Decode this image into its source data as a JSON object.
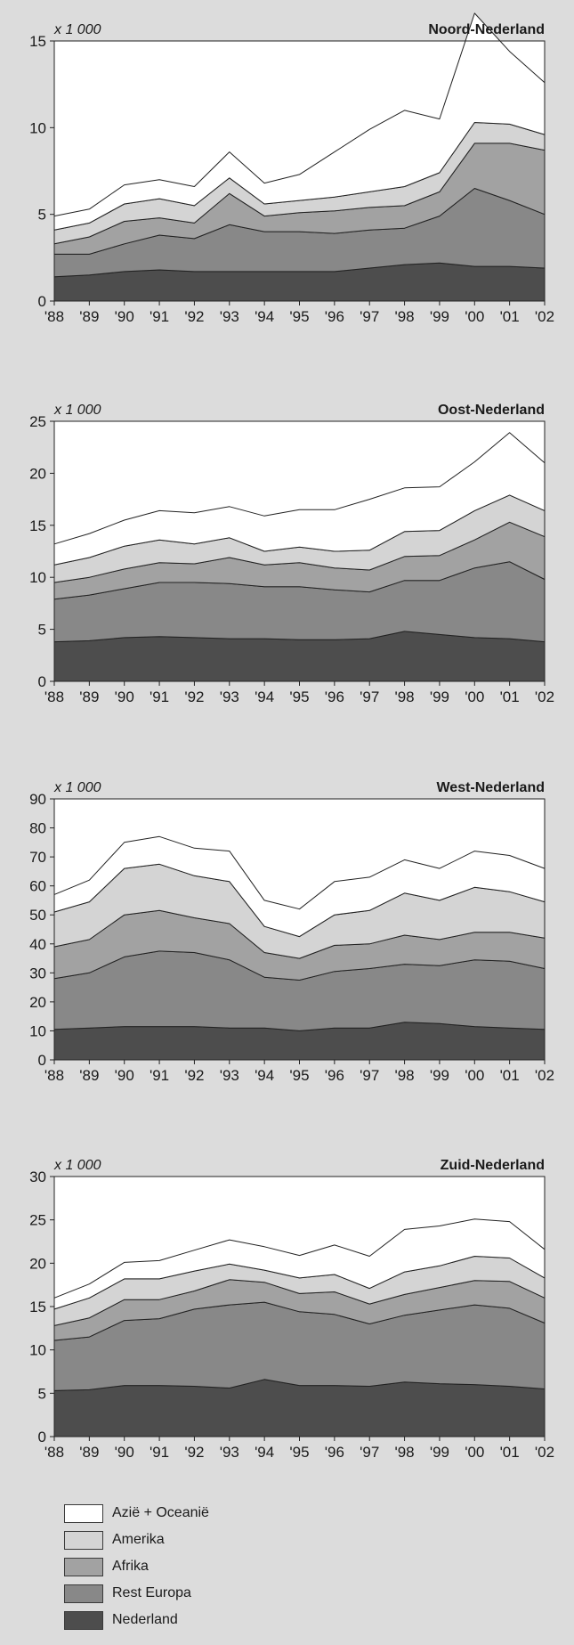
{
  "colors": {
    "background": "#dcdcdc",
    "plot_bg": "#ffffff",
    "text": "#1a1a1a",
    "series": [
      "#4d4d4d",
      "#888888",
      "#a2a2a2",
      "#d4d4d4",
      "#ffffff"
    ]
  },
  "chart_data": [
    {
      "type": "area",
      "stacked": true,
      "title": "Noord-Nederland",
      "unit_label": "x 1 000",
      "categories": [
        "'88",
        "'89",
        "'90",
        "'91",
        "'92",
        "'93",
        "'94",
        "'95",
        "'96",
        "'97",
        "'98",
        "'99",
        "'00",
        "'01",
        "'02"
      ],
      "ylim": [
        0,
        15
      ],
      "yticks": [
        0,
        5,
        10,
        15
      ],
      "series": [
        {
          "name": "Nederland",
          "values": [
            1.4,
            1.5,
            1.7,
            1.8,
            1.7,
            1.7,
            1.7,
            1.7,
            1.7,
            1.9,
            2.1,
            2.2,
            2.0,
            2.0,
            1.9
          ]
        },
        {
          "name": "Rest Europa",
          "values": [
            1.3,
            1.2,
            1.6,
            2.0,
            1.9,
            2.7,
            2.3,
            2.3,
            2.2,
            2.2,
            2.1,
            2.7,
            4.5,
            3.8,
            3.1
          ]
        },
        {
          "name": "Afrika",
          "values": [
            0.6,
            1.0,
            1.3,
            1.0,
            0.9,
            1.8,
            0.9,
            1.1,
            1.3,
            1.3,
            1.3,
            1.4,
            2.6,
            3.3,
            3.7
          ]
        },
        {
          "name": "Amerika",
          "values": [
            0.8,
            0.8,
            1.0,
            1.1,
            1.0,
            0.9,
            0.7,
            0.7,
            0.8,
            0.9,
            1.1,
            1.1,
            1.2,
            1.1,
            0.9
          ]
        },
        {
          "name": "Azië + Oceanië",
          "values": [
            0.8,
            0.8,
            1.1,
            1.1,
            1.1,
            1.5,
            1.2,
            1.5,
            2.6,
            3.6,
            4.4,
            3.1,
            6.3,
            4.2,
            3.0
          ]
        }
      ]
    },
    {
      "type": "area",
      "stacked": true,
      "title": "Oost-Nederland",
      "unit_label": "x 1 000",
      "categories": [
        "'88",
        "'89",
        "'90",
        "'91",
        "'92",
        "'93",
        "'94",
        "'95",
        "'96",
        "'97",
        "'98",
        "'99",
        "'00",
        "'01",
        "'02"
      ],
      "ylim": [
        0,
        25
      ],
      "yticks": [
        0,
        5,
        10,
        15,
        20,
        25
      ],
      "series": [
        {
          "name": "Nederland",
          "values": [
            3.8,
            3.9,
            4.2,
            4.3,
            4.2,
            4.1,
            4.1,
            4.0,
            4.0,
            4.1,
            4.8,
            4.5,
            4.2,
            4.1,
            3.8
          ]
        },
        {
          "name": "Rest Europa",
          "values": [
            4.1,
            4.4,
            4.7,
            5.2,
            5.3,
            5.3,
            5.0,
            5.1,
            4.8,
            4.5,
            4.9,
            5.2,
            6.7,
            7.4,
            6.0
          ]
        },
        {
          "name": "Afrika",
          "values": [
            1.6,
            1.7,
            1.9,
            1.9,
            1.8,
            2.5,
            2.1,
            2.3,
            2.1,
            2.1,
            2.3,
            2.4,
            2.7,
            3.8,
            4.1
          ]
        },
        {
          "name": "Amerika",
          "values": [
            1.7,
            1.9,
            2.2,
            2.2,
            1.9,
            1.9,
            1.3,
            1.5,
            1.6,
            1.9,
            2.4,
            2.4,
            2.8,
            2.6,
            2.5
          ]
        },
        {
          "name": "Azië + Oceanië",
          "values": [
            2.0,
            2.3,
            2.5,
            2.8,
            3.0,
            3.0,
            3.4,
            3.6,
            4.0,
            4.9,
            4.2,
            4.2,
            4.7,
            6.0,
            4.6
          ]
        }
      ]
    },
    {
      "type": "area",
      "stacked": true,
      "title": "West-Nederland",
      "unit_label": "x 1 000",
      "categories": [
        "'88",
        "'89",
        "'90",
        "'91",
        "'92",
        "'93",
        "'94",
        "'95",
        "'96",
        "'97",
        "'98",
        "'99",
        "'00",
        "'01",
        "'02"
      ],
      "ylim": [
        0,
        90
      ],
      "yticks": [
        0,
        10,
        20,
        30,
        40,
        50,
        60,
        70,
        80,
        90
      ],
      "series": [
        {
          "name": "Nederland",
          "values": [
            10.5,
            11,
            11.5,
            11.5,
            11.5,
            11,
            11,
            10,
            11,
            11,
            13,
            12.5,
            11.5,
            11,
            10.5
          ]
        },
        {
          "name": "Rest Europa",
          "values": [
            17.5,
            19,
            24,
            26,
            25.5,
            23.5,
            17.5,
            17.5,
            19.5,
            20.5,
            20,
            20,
            23,
            23,
            21
          ]
        },
        {
          "name": "Afrika",
          "values": [
            11,
            11.5,
            14.5,
            14,
            12,
            12.5,
            8.5,
            7.5,
            9,
            8.5,
            10,
            9,
            9.5,
            10,
            10.5
          ]
        },
        {
          "name": "Amerika",
          "values": [
            12,
            13,
            16,
            16,
            14.5,
            14.5,
            9,
            7.5,
            10.5,
            11.5,
            14.5,
            13.5,
            15.5,
            14,
            12.5
          ]
        },
        {
          "name": "Azië + Oceanië",
          "values": [
            6,
            7.5,
            9,
            9.5,
            9.5,
            10.5,
            9,
            9.5,
            11.5,
            11.5,
            11.5,
            11,
            12.5,
            12.5,
            11.5
          ]
        }
      ]
    },
    {
      "type": "area",
      "stacked": true,
      "title": "Zuid-Nederland",
      "unit_label": "x 1 000",
      "categories": [
        "'88",
        "'89",
        "'90",
        "'91",
        "'92",
        "'93",
        "'94",
        "'95",
        "'96",
        "'97",
        "'98",
        "'99",
        "'00",
        "'01",
        "'02"
      ],
      "ylim": [
        0,
        30
      ],
      "yticks": [
        0,
        5,
        10,
        15,
        20,
        25,
        30
      ],
      "series": [
        {
          "name": "Nederland",
          "values": [
            5.3,
            5.4,
            5.9,
            5.9,
            5.8,
            5.6,
            6.6,
            5.9,
            5.9,
            5.8,
            6.3,
            6.1,
            6.0,
            5.8,
            5.5
          ]
        },
        {
          "name": "Rest Europa",
          "values": [
            5.8,
            6.1,
            7.5,
            7.7,
            8.9,
            9.6,
            8.9,
            8.5,
            8.2,
            7.2,
            7.7,
            8.5,
            9.2,
            9.0,
            7.6
          ]
        },
        {
          "name": "Afrika",
          "values": [
            1.7,
            2.2,
            2.4,
            2.2,
            2.1,
            2.9,
            2.3,
            2.1,
            2.6,
            2.3,
            2.4,
            2.6,
            2.8,
            3.1,
            2.9
          ]
        },
        {
          "name": "Amerika",
          "values": [
            1.9,
            2.3,
            2.4,
            2.4,
            2.3,
            1.8,
            1.4,
            1.8,
            2.0,
            1.8,
            2.6,
            2.5,
            2.8,
            2.7,
            2.3
          ]
        },
        {
          "name": "Azië + Oceanië",
          "values": [
            1.3,
            1.6,
            1.9,
            2.1,
            2.4,
            2.8,
            2.7,
            2.6,
            3.4,
            3.7,
            4.9,
            4.6,
            4.3,
            4.2,
            3.3
          ]
        }
      ]
    }
  ],
  "legend": [
    {
      "label": "Azië + Oceanië",
      "color": "#ffffff"
    },
    {
      "label": "Amerika",
      "color": "#d4d4d4"
    },
    {
      "label": "Afrika",
      "color": "#a2a2a2"
    },
    {
      "label": "Rest Europa",
      "color": "#888888"
    },
    {
      "label": "Nederland",
      "color": "#4d4d4d"
    }
  ]
}
